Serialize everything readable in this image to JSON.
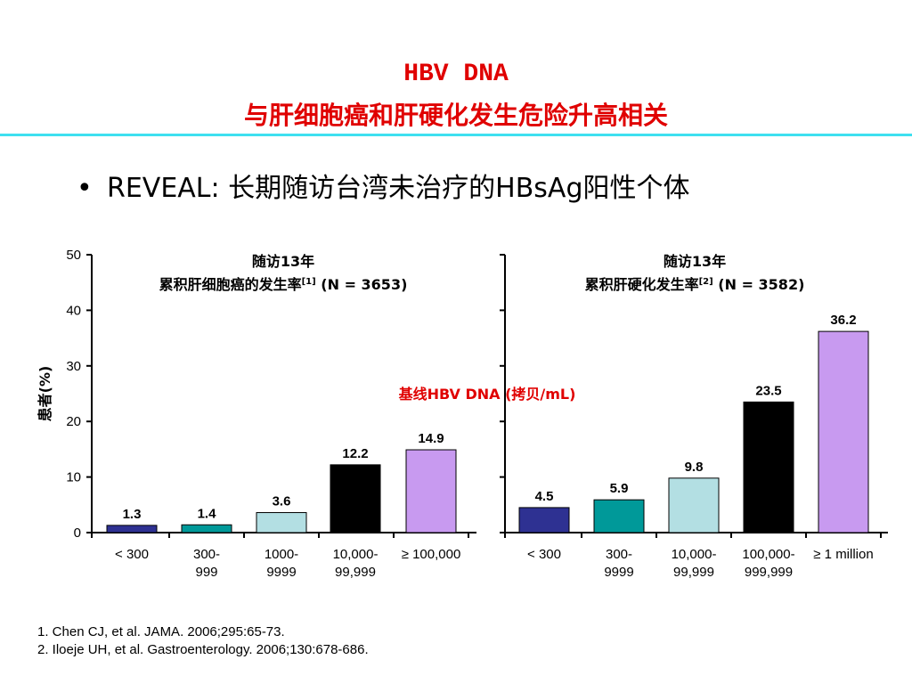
{
  "slide": {
    "title_line1": "HBV DNA",
    "title_line2": "与肝细胞癌和肝硬化发生危险升高相关",
    "bullet": "REVEAL: 长期随访台湾未治疗的HBsAg阳性个体",
    "references": [
      "1. Chen CJ, et al. JAMA. 2006;295:65-73.",
      "2. Iloeje UH, et al. Gastroenterology. 2006;130:678-686."
    ]
  },
  "colors": {
    "title": "#e00000",
    "rule": "#3ee0f0",
    "annotation": "#e00000"
  },
  "chart_data": [
    {
      "type": "bar",
      "title_line1": "随访13年",
      "title_line2": "累积肝细胞癌的发生率",
      "title_ref": "[1]",
      "title_n": " (N = 3653)",
      "ylabel": "患者(%)",
      "ylim": [
        0,
        50
      ],
      "yticks": [
        0,
        10,
        20,
        30,
        40,
        50
      ],
      "categories": [
        [
          "< 300"
        ],
        [
          "300-",
          "999"
        ],
        [
          "1000-",
          "9999"
        ],
        [
          "10,000-",
          "99,999"
        ],
        [
          "≥ 100,000"
        ]
      ],
      "values": [
        1.3,
        1.4,
        3.6,
        12.2,
        14.9
      ],
      "labels": [
        "1.3",
        "1.4",
        "3.6",
        "12.2",
        "14.9"
      ],
      "colors": [
        "#2e3192",
        "#009999",
        "#b3dfe3",
        "#000000",
        "#c89af0"
      ]
    },
    {
      "type": "bar",
      "title_line1": "随访13年",
      "title_line2": "累积肝硬化发生率",
      "title_ref": "[2]",
      "title_n": " (N = 3582)",
      "xlabel": "基线HBV DNA (拷贝/mL)",
      "ylim": [
        0,
        50
      ],
      "yticks": [
        0,
        10,
        20,
        30,
        40,
        50
      ],
      "categories": [
        [
          "< 300"
        ],
        [
          "300-",
          "9999"
        ],
        [
          "10,000-",
          "99,999"
        ],
        [
          "100,000-",
          "999,999"
        ],
        [
          "≥ 1 million"
        ]
      ],
      "values": [
        4.5,
        5.9,
        9.8,
        23.5,
        36.2
      ],
      "labels": [
        "4.5",
        "5.9",
        "9.8",
        "23.5",
        "36.2"
      ],
      "colors": [
        "#2e3192",
        "#009999",
        "#b3dfe3",
        "#000000",
        "#c89af0"
      ]
    }
  ]
}
